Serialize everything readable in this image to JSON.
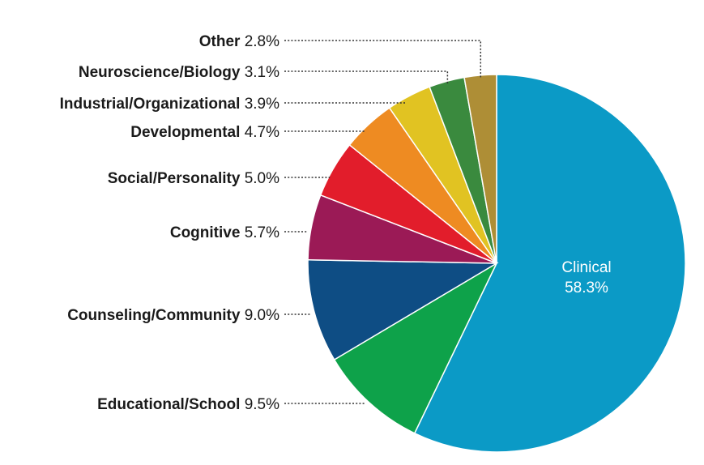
{
  "chart_data": {
    "type": "pie",
    "title": "",
    "start": "12 o'clock",
    "direction": "clockwise",
    "slices": [
      {
        "label": "Clinical",
        "value": 58.3,
        "pct": "58.3%",
        "color": "#0b9ac6"
      },
      {
        "label": "Educational/School",
        "value": 9.5,
        "pct": "9.5%",
        "color": "#0ea24a"
      },
      {
        "label": "Counseling/Community",
        "value": 9.0,
        "pct": "9.0%",
        "color": "#0e4d84"
      },
      {
        "label": "Cognitive",
        "value": 5.7,
        "pct": "5.7%",
        "color": "#9b1a56"
      },
      {
        "label": "Social/Personality",
        "value": 5.0,
        "pct": "5.0%",
        "color": "#e21d2b"
      },
      {
        "label": "Developmental",
        "value": 4.7,
        "pct": "4.7%",
        "color": "#ee8b22"
      },
      {
        "label": "Industrial/Organizational",
        "value": 3.9,
        "pct": "3.9%",
        "color": "#e1c322"
      },
      {
        "label": "Neuroscience/Biology",
        "value": 3.1,
        "pct": "3.1%",
        "color": "#3a8a3e"
      },
      {
        "label": "Other",
        "value": 2.8,
        "pct": "2.8%",
        "color": "#ae8e36"
      }
    ]
  }
}
